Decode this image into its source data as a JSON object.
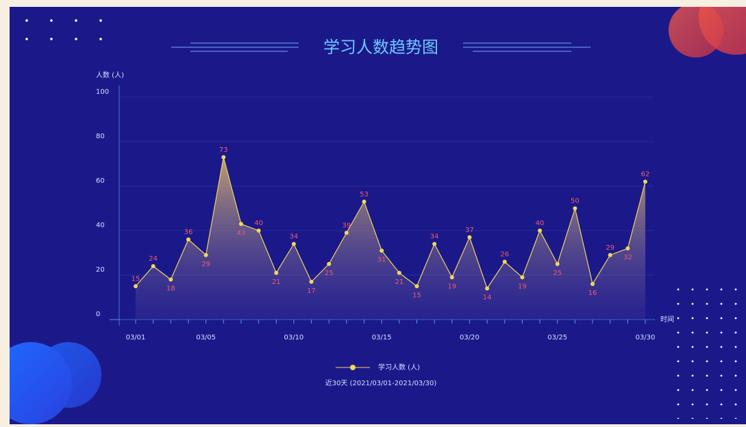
{
  "chart_data": {
    "type": "line",
    "title": "学习人数趋势图",
    "y_label": "人数 (人)",
    "x_label": "时间",
    "subtitle": "近30天 (2021/03/01-2021/03/30)",
    "categories": [
      "03/01",
      null,
      null,
      null,
      "03/05",
      null,
      null,
      null,
      null,
      "03/10",
      null,
      null,
      null,
      null,
      "03/15",
      null,
      null,
      null,
      null,
      "03/20",
      null,
      null,
      null,
      null,
      "03/25",
      null,
      null,
      null,
      null,
      "03/30"
    ],
    "series": [
      {
        "name": "学习人数 (人)",
        "color": "#f2d65a",
        "values": [
          15,
          24,
          18,
          36,
          29,
          73,
          43,
          40,
          21,
          34,
          17,
          25,
          39,
          53,
          31,
          21,
          15,
          34,
          19,
          37,
          14,
          26,
          19,
          40,
          25,
          50,
          16,
          29,
          32,
          62
        ]
      }
    ],
    "ylim": [
      0,
      100
    ],
    "yticks": [
      0,
      20,
      40,
      60,
      80,
      100
    ],
    "grid": true
  }
}
